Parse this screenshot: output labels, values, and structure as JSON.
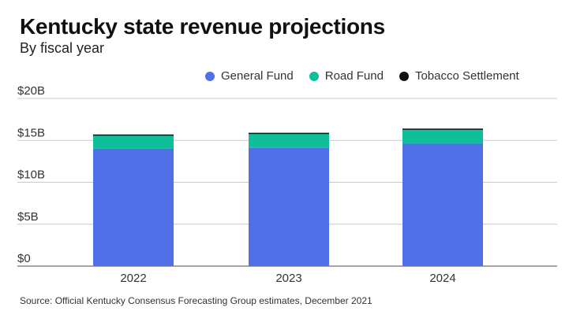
{
  "chart_data": {
    "type": "bar",
    "stacked": true,
    "title": "Kentucky state revenue projections",
    "subtitle": "By fiscal year",
    "xlabel": "",
    "ylabel": "",
    "categories": [
      "2022",
      "2023",
      "2024"
    ],
    "series": [
      {
        "name": "General Fund",
        "color": "#5070e8",
        "values": [
          14.0,
          14.1,
          14.6
        ]
      },
      {
        "name": "Road Fund",
        "color": "#0ebf9a",
        "values": [
          1.6,
          1.7,
          1.7
        ]
      },
      {
        "name": "Tobacco Settlement",
        "color": "#111111",
        "values": [
          0.1,
          0.1,
          0.1
        ]
      }
    ],
    "ylim": [
      0,
      20
    ],
    "yticks": [
      0,
      5,
      10,
      15,
      20
    ],
    "ytick_labels": [
      "$0",
      "$5B",
      "$10B",
      "$15B",
      "$20B"
    ],
    "grid": true,
    "legend_position": "top-right",
    "source": "Source: Official Kentucky Consensus Forecasting Group estimates, December 2021"
  }
}
